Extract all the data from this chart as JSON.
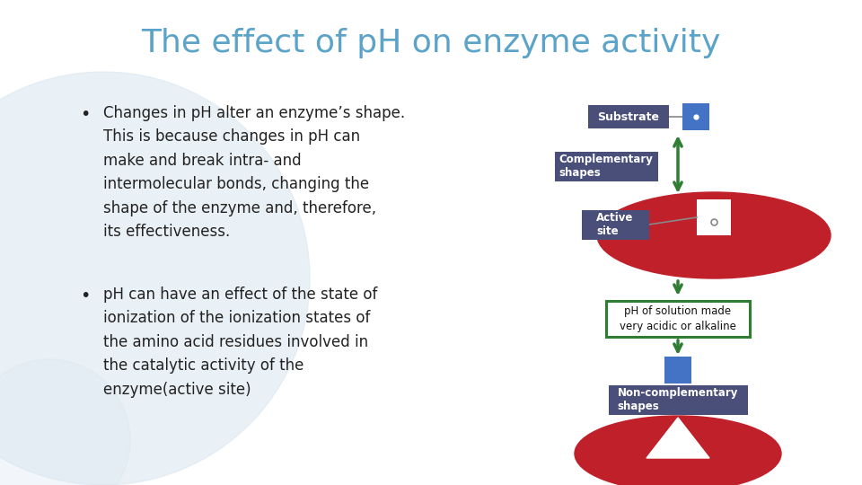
{
  "title": "The effect of pH on enzyme activity",
  "title_color": "#5ba3c9",
  "title_fontsize": 26,
  "bg_color": "#ffffff",
  "bullet1_lines": [
    "Changes in pH alter an enzyme’s shape.",
    "This is because changes in pH can",
    "make and break intra- and",
    "intermolecular bonds, changing the",
    "shape of the enzyme and, therefore,",
    "its effectiveness."
  ],
  "bullet2_lines": [
    "pH can have an effect of the state of",
    "ionization of the ionization states of",
    "the amino acid residues involved in",
    "the catalytic activity of the",
    "enzyme(active site)"
  ],
  "text_color": "#222222",
  "text_fontsize": 12,
  "box_dark": "#4a4f7a",
  "box_green_border": "#2e7d32",
  "box_blue": "#4472c4",
  "arrow_green": "#2e7d32",
  "enzyme_red": "#c0202a",
  "bg_circle_color": "#d6e4ef",
  "bg_circle_alpha": 0.5
}
